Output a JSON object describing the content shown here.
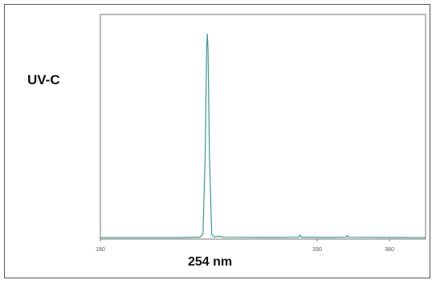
{
  "chart_data": {
    "type": "line",
    "series_label": "UV-C",
    "peak_label": "254 nm",
    "xlim": [
      180,
      405
    ],
    "ylim": [
      0,
      100
    ],
    "x_ticks": [
      {
        "value": 180,
        "label": "180"
      },
      {
        "value": 330,
        "label": "330"
      },
      {
        "value": 380,
        "label": "380"
      }
    ],
    "line_color": "#3a9a85",
    "points": [
      [
        180,
        0.3
      ],
      [
        230,
        0.3
      ],
      [
        240,
        0.4
      ],
      [
        249,
        0.6
      ],
      [
        251,
        2
      ],
      [
        252.5,
        40
      ],
      [
        253.5,
        92
      ],
      [
        254,
        100
      ],
      [
        254.5,
        92
      ],
      [
        255.5,
        40
      ],
      [
        257,
        2
      ],
      [
        259,
        0.6
      ],
      [
        262,
        1.0
      ],
      [
        265,
        0.5
      ],
      [
        300,
        0.4
      ],
      [
        317,
        0.5
      ],
      [
        318,
        1.5
      ],
      [
        319,
        0.5
      ],
      [
        340,
        0.4
      ],
      [
        350,
        0.5
      ],
      [
        351,
        1.2
      ],
      [
        352,
        0.5
      ],
      [
        405,
        0.3
      ]
    ]
  },
  "labels": {
    "series": "UV-C",
    "peak": "254 nm"
  }
}
